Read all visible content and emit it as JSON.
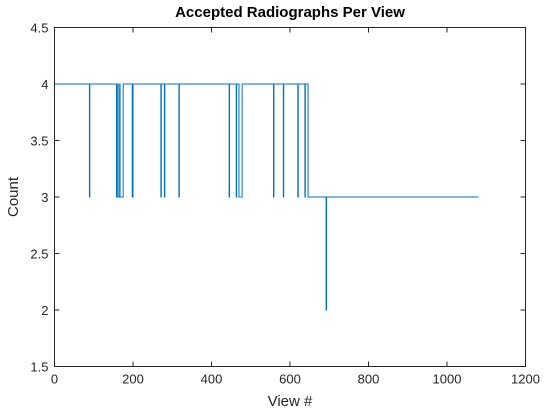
{
  "chart_data": {
    "type": "line",
    "title": "Accepted Radiographs Per View",
    "xlabel": "View #",
    "ylabel": "Count",
    "xlim": [
      0,
      1200
    ],
    "ylim": [
      1.5,
      4.5
    ],
    "xticks": [
      0,
      200,
      400,
      600,
      800,
      1000,
      1200
    ],
    "xtick_labels": [
      "0",
      "200",
      "400",
      "600",
      "800",
      "1000",
      "1200"
    ],
    "yticks": [
      1.5,
      2,
      2.5,
      3,
      3.5,
      4,
      4.5
    ],
    "ytick_labels": [
      "1.5",
      "2",
      "2.5",
      "3",
      "3.5",
      "4",
      "4.5"
    ],
    "grid": false,
    "series_color": "#0072bd",
    "series": [
      {
        "x": [
          0,
          89,
          89,
          90,
          90,
          158,
          158,
          159,
          159,
          162,
          162,
          166,
          166,
          167,
          167,
          175,
          175,
          198,
          198,
          200,
          200,
          271,
          271,
          272,
          272,
          280,
          280,
          281,
          281,
          317,
          317,
          318,
          318,
          445,
          445,
          446,
          446,
          463,
          463,
          464,
          464,
          470,
          470,
          478,
          478,
          558,
          558,
          559,
          559,
          583,
          583,
          584,
          584,
          620,
          620,
          621,
          621,
          638,
          638,
          639,
          639,
          646,
          646,
          692,
          692,
          693,
          693,
          1080
        ],
        "y": [
          4,
          4,
          3,
          3,
          4,
          4,
          3,
          3,
          4,
          4,
          3,
          3,
          4,
          4,
          3,
          3,
          4,
          4,
          3,
          3,
          4,
          4,
          3,
          3,
          4,
          4,
          3,
          3,
          4,
          4,
          3,
          3,
          4,
          4,
          3,
          3,
          4,
          4,
          3,
          3,
          4,
          4,
          3,
          3,
          4,
          4,
          3,
          3,
          4,
          4,
          3,
          3,
          4,
          4,
          3,
          3,
          4,
          4,
          3,
          3,
          4,
          4,
          3,
          3,
          2,
          2,
          3,
          3
        ]
      }
    ]
  }
}
